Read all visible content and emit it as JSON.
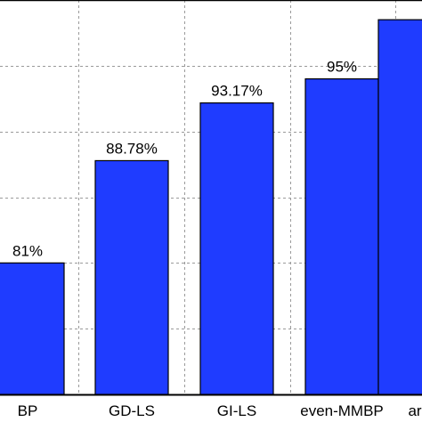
{
  "chart_data": {
    "type": "bar",
    "categories": [
      "BP",
      "GD-LS",
      "GI-LS",
      "even-MMBP",
      "ar"
    ],
    "values": [
      81,
      88.78,
      93.17,
      95,
      99.5
    ],
    "data_labels": [
      "81%",
      "88.78%",
      "93.17%",
      "95%",
      ""
    ],
    "ylim": [
      71,
      101
    ],
    "y_gridlines": [
      76,
      81,
      86,
      91,
      96
    ],
    "grid": true,
    "bar_color": "#1f3cff",
    "bar_edge_color": "#000000"
  }
}
